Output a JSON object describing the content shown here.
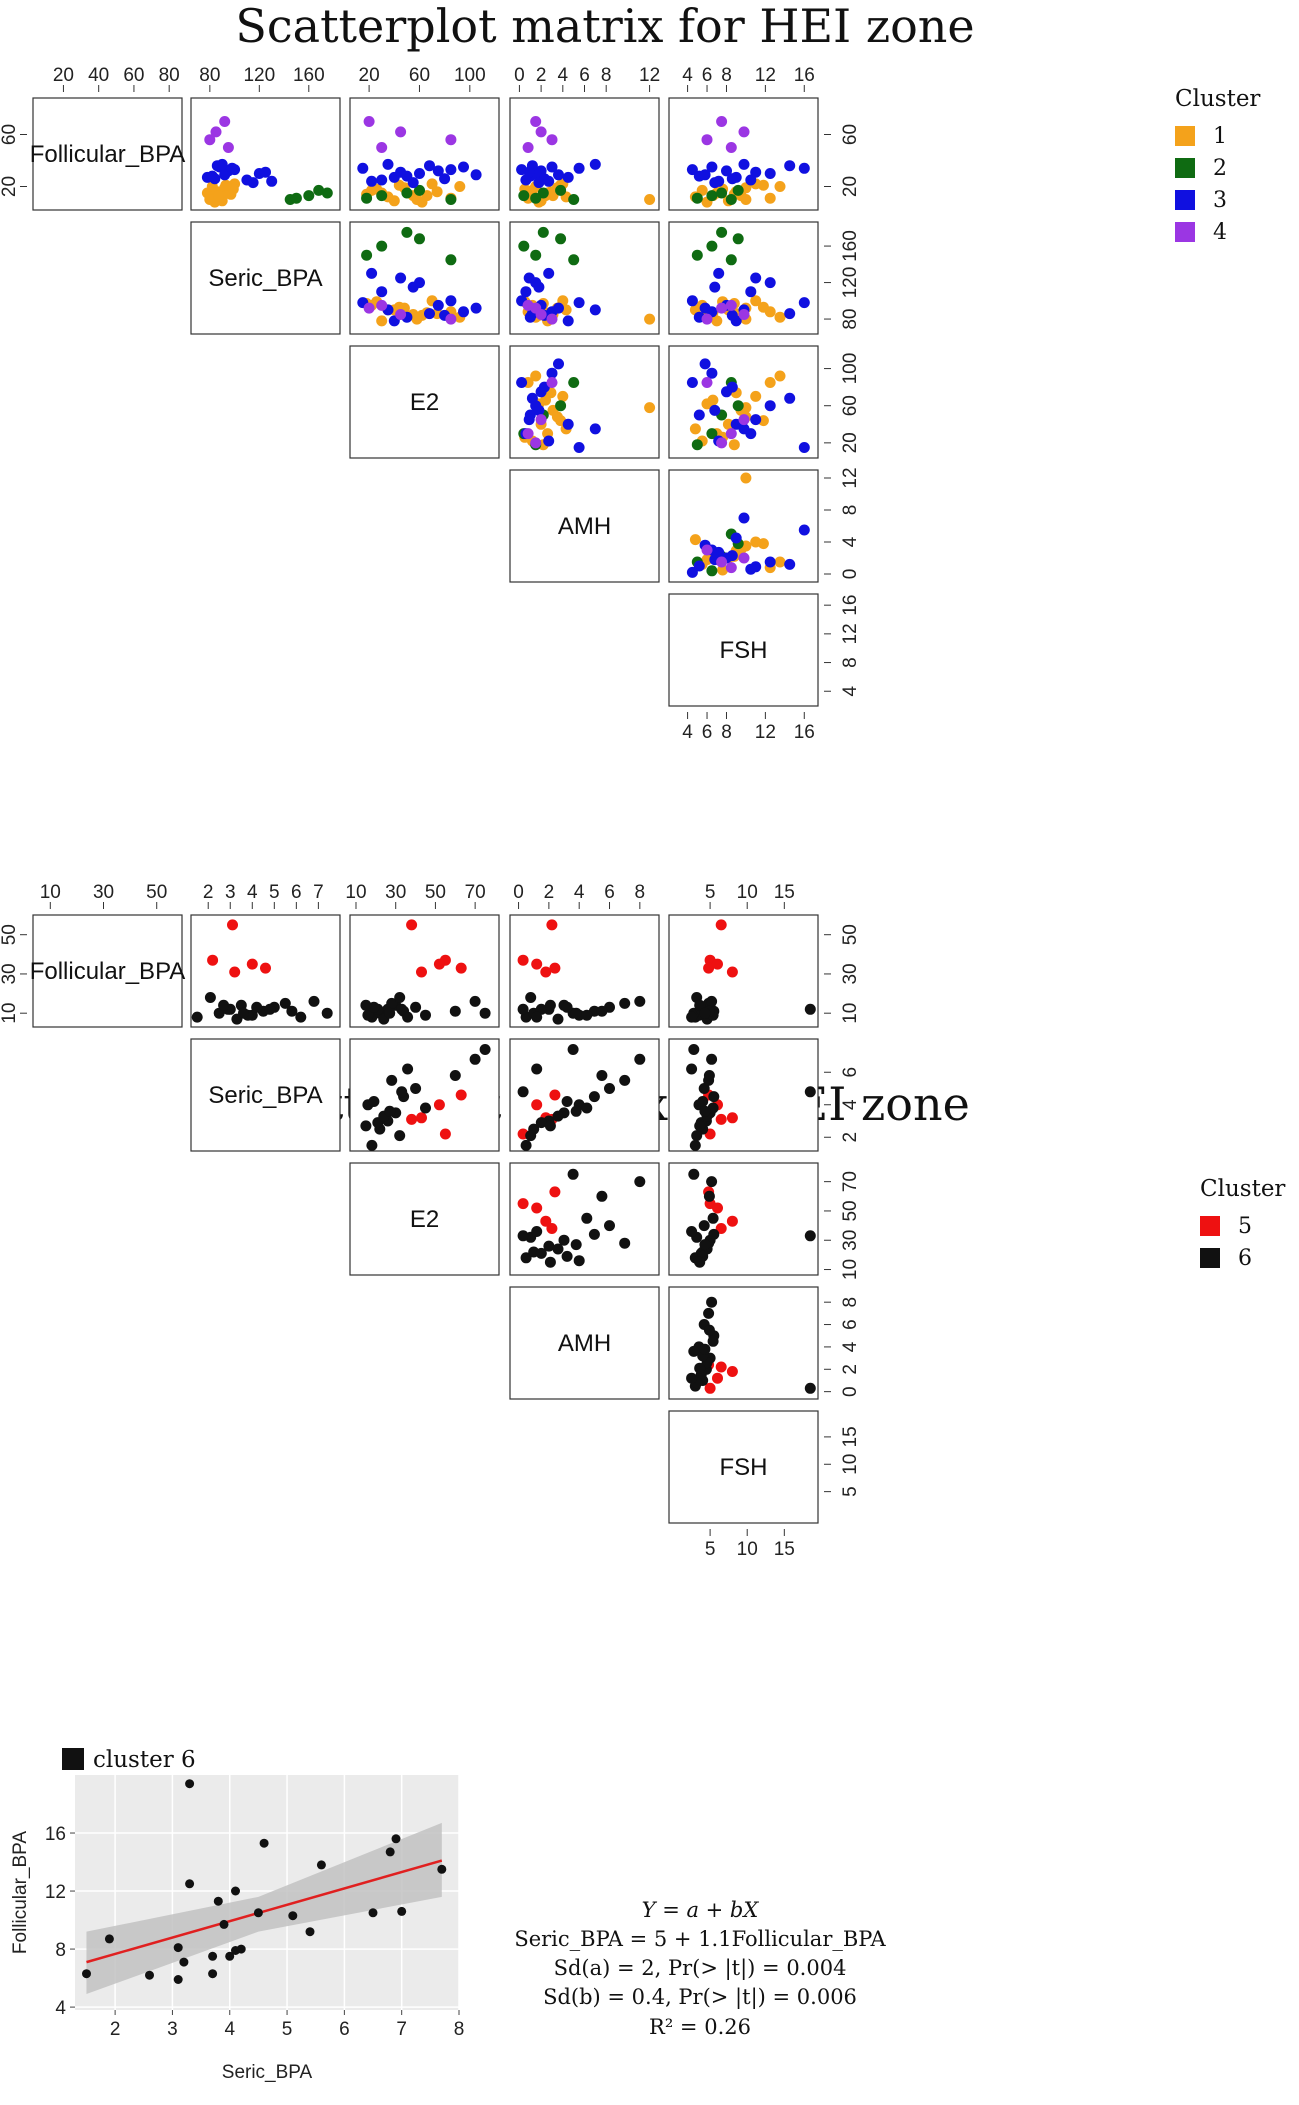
{
  "chart_data": [
    {
      "type": "scatter-matrix",
      "title": "Scatterplot matrix for HEI zone",
      "variables": [
        "Follicular_BPA",
        "Seric_BPA",
        "E2",
        "AMH",
        "FSH"
      ],
      "ranges": {
        "Follicular_BPA": [
          5,
          85
        ],
        "Seric_BPA": [
          68,
          182
        ],
        "E2": [
          8,
          120
        ],
        "AMH": [
          -0.5,
          12.5
        ],
        "FSH": [
          2.5,
          17
        ]
      },
      "ticks": {
        "Follicular_BPA": [
          20,
          40,
          60,
          80
        ],
        "Seric_BPA": [
          80,
          120,
          160
        ],
        "E2": [
          20,
          60,
          100
        ],
        "AMH": [
          0,
          2,
          4,
          6,
          8,
          12
        ],
        "FSH": [
          4,
          6,
          8,
          12,
          16
        ]
      },
      "right_ticks": {
        "Follicular_BPA": [
          20,
          60
        ],
        "Seric_BPA": [
          80,
          120,
          160
        ],
        "E2": [
          20,
          60,
          100
        ],
        "AMH": [
          0,
          4,
          8,
          12
        ],
        "FSH": [
          4,
          8,
          12,
          16
        ]
      },
      "left_ticks": {
        "Follicular_BPA": [
          20,
          60
        ]
      },
      "bottom_ticks": {
        "FSH": [
          4,
          6,
          8,
          12,
          16
        ]
      },
      "legend": {
        "title": "Cluster",
        "entries": [
          {
            "label": "1",
            "color": "#f4a21b"
          },
          {
            "label": "2",
            "color": "#0f6b12"
          },
          {
            "label": "3",
            "color": "#1010e0"
          },
          {
            "label": "4",
            "color": "#9b36e3"
          }
        ]
      },
      "series": [
        {
          "cluster": "1",
          "color": "#f4a21b",
          "points": [
            {
              "Follicular_BPA": 9,
              "Seric_BPA": 90,
              "E2": 40,
              "AMH": 2.0,
              "FSH": 8.2
            },
            {
              "Follicular_BPA": 13,
              "Seric_BPA": 85,
              "E2": 55,
              "AMH": 3.1,
              "FSH": 9.5
            },
            {
              "Follicular_BPA": 17,
              "Seric_BPA": 95,
              "E2": 22,
              "AMH": 1.2,
              "FSH": 5.5
            },
            {
              "Follicular_BPA": 22,
              "Seric_BPA": 100,
              "E2": 70,
              "AMH": 4.0,
              "FSH": 11.0
            },
            {
              "Follicular_BPA": 15,
              "Seric_BPA": 78,
              "E2": 30,
              "AMH": 2.6,
              "FSH": 7.0
            },
            {
              "Follicular_BPA": 11,
              "Seric_BPA": 88,
              "E2": 85,
              "AMH": 0.8,
              "FSH": 12.5
            },
            {
              "Follicular_BPA": 19,
              "Seric_BPA": 92,
              "E2": 48,
              "AMH": 3.5,
              "FSH": 10.0
            },
            {
              "Follicular_BPA": 8,
              "Seric_BPA": 84,
              "E2": 62,
              "AMH": 1.8,
              "FSH": 6.0
            },
            {
              "Follicular_BPA": 14,
              "Seric_BPA": 97,
              "E2": 18,
              "AMH": 2.2,
              "FSH": 8.8
            },
            {
              "Follicular_BPA": 20,
              "Seric_BPA": 82,
              "E2": 92,
              "AMH": 1.5,
              "FSH": 13.5
            },
            {
              "Follicular_BPA": 12,
              "Seric_BPA": 90,
              "E2": 35,
              "AMH": 4.3,
              "FSH": 4.8
            },
            {
              "Follicular_BPA": 16,
              "Seric_BPA": 86,
              "E2": 74,
              "AMH": 2.9,
              "FSH": 9.0
            },
            {
              "Follicular_BPA": 18,
              "Seric_BPA": 99,
              "E2": 26,
              "AMH": 0.5,
              "FSH": 7.6
            },
            {
              "Follicular_BPA": 10,
              "Seric_BPA": 80,
              "E2": 58,
              "AMH": 12.0,
              "FSH": 10.0
            },
            {
              "Follicular_BPA": 21,
              "Seric_BPA": 93,
              "E2": 44,
              "AMH": 3.8,
              "FSH": 11.8
            },
            {
              "Follicular_BPA": 13,
              "Seric_BPA": 87,
              "E2": 66,
              "AMH": 2.4,
              "FSH": 6.6
            }
          ]
        },
        {
          "cluster": "2",
          "color": "#0f6b12",
          "points": [
            {
              "Follicular_BPA": 13,
              "Seric_BPA": 160,
              "E2": 30,
              "AMH": 0.4,
              "FSH": 6.5
            },
            {
              "Follicular_BPA": 15,
              "Seric_BPA": 175,
              "E2": 50,
              "AMH": 2.2,
              "FSH": 7.5
            },
            {
              "Follicular_BPA": 10,
              "Seric_BPA": 145,
              "E2": 85,
              "AMH": 5.0,
              "FSH": 8.5
            },
            {
              "Follicular_BPA": 17,
              "Seric_BPA": 168,
              "E2": 60,
              "AMH": 3.8,
              "FSH": 9.2
            },
            {
              "Follicular_BPA": 11,
              "Seric_BPA": 150,
              "E2": 18,
              "AMH": 1.5,
              "FSH": 5.0
            }
          ]
        },
        {
          "cluster": "3",
          "color": "#1010e0",
          "points": [
            {
              "Follicular_BPA": 28,
              "Seric_BPA": 82,
              "E2": 50,
              "AMH": 1.0,
              "FSH": 5.2
            },
            {
              "Follicular_BPA": 32,
              "Seric_BPA": 95,
              "E2": 75,
              "AMH": 2.0,
              "FSH": 8.0
            },
            {
              "Follicular_BPA": 25,
              "Seric_BPA": 110,
              "E2": 30,
              "AMH": 0.6,
              "FSH": 10.5
            },
            {
              "Follicular_BPA": 35,
              "Seric_BPA": 88,
              "E2": 95,
              "AMH": 3.0,
              "FSH": 6.5
            },
            {
              "Follicular_BPA": 30,
              "Seric_BPA": 120,
              "E2": 60,
              "AMH": 1.5,
              "FSH": 12.5
            },
            {
              "Follicular_BPA": 27,
              "Seric_BPA": 78,
              "E2": 40,
              "AMH": 4.5,
              "FSH": 9.0
            },
            {
              "Follicular_BPA": 33,
              "Seric_BPA": 100,
              "E2": 85,
              "AMH": 0.2,
              "FSH": 4.5
            },
            {
              "Follicular_BPA": 24,
              "Seric_BPA": 130,
              "E2": 22,
              "AMH": 2.7,
              "FSH": 7.2
            },
            {
              "Follicular_BPA": 36,
              "Seric_BPA": 86,
              "E2": 68,
              "AMH": 1.2,
              "FSH": 14.5
            },
            {
              "Follicular_BPA": 29,
              "Seric_BPA": 92,
              "E2": 105,
              "AMH": 3.6,
              "FSH": 5.8
            },
            {
              "Follicular_BPA": 31,
              "Seric_BPA": 125,
              "E2": 45,
              "AMH": 0.9,
              "FSH": 11.0
            },
            {
              "Follicular_BPA": 26,
              "Seric_BPA": 84,
              "E2": 80,
              "AMH": 2.3,
              "FSH": 8.6
            },
            {
              "Follicular_BPA": 34,
              "Seric_BPA": 98,
              "E2": 15,
              "AMH": 5.5,
              "FSH": 16.0
            },
            {
              "Follicular_BPA": 23,
              "Seric_BPA": 115,
              "E2": 55,
              "AMH": 1.8,
              "FSH": 6.8
            },
            {
              "Follicular_BPA": 37,
              "Seric_BPA": 90,
              "E2": 35,
              "AMH": 7.0,
              "FSH": 9.8
            }
          ]
        },
        {
          "cluster": "4",
          "color": "#9b36e3",
          "points": [
            {
              "Follicular_BPA": 70,
              "Seric_BPA": 92,
              "E2": 20,
              "AMH": 1.5,
              "FSH": 7.5
            },
            {
              "Follicular_BPA": 62,
              "Seric_BPA": 85,
              "E2": 45,
              "AMH": 2.0,
              "FSH": 9.8
            },
            {
              "Follicular_BPA": 56,
              "Seric_BPA": 80,
              "E2": 85,
              "AMH": 3.0,
              "FSH": 6.0
            },
            {
              "Follicular_BPA": 50,
              "Seric_BPA": 95,
              "E2": 30,
              "AMH": 0.8,
              "FSH": 8.5
            }
          ]
        }
      ]
    },
    {
      "type": "scatter-matrix",
      "title": "Scatterplot matrix for LEI zone",
      "variables": [
        "Follicular_BPA",
        "Seric_BPA",
        "E2",
        "AMH",
        "FSH"
      ],
      "ranges": {
        "Follicular_BPA": [
          5,
          58
        ],
        "Seric_BPA": [
          1.4,
          7.8
        ],
        "E2": [
          9,
          80
        ],
        "AMH": [
          -0.3,
          9
        ],
        "FSH": [
          0,
          19
        ]
      },
      "ticks": {
        "Follicular_BPA": [
          10,
          30,
          50
        ],
        "Seric_BPA": [
          2,
          3,
          4,
          5,
          6,
          7
        ],
        "E2": [
          10,
          30,
          50,
          70
        ],
        "AMH": [
          0,
          2,
          4,
          6,
          8
        ],
        "FSH": [
          5,
          10,
          15
        ]
      },
      "right_ticks": {
        "Follicular_BPA": [
          10,
          30,
          50
        ],
        "Seric_BPA": [
          2,
          4,
          6
        ],
        "E2": [
          10,
          30,
          50,
          70
        ],
        "AMH": [
          0,
          2,
          4,
          6,
          8
        ],
        "FSH": [
          5,
          10,
          15
        ]
      },
      "left_ticks": {
        "Follicular_BPA": [
          10,
          30,
          50
        ]
      },
      "bottom_ticks": {
        "FSH": [
          5,
          10,
          15
        ]
      },
      "legend": {
        "title": "Cluster",
        "entries": [
          {
            "label": "5",
            "color": "#ee1111"
          },
          {
            "label": "6",
            "color": "#111111"
          }
        ]
      },
      "series": [
        {
          "cluster": "5",
          "color": "#ee1111",
          "points": [
            {
              "Follicular_BPA": 55,
              "Seric_BPA": 3.1,
              "E2": 38,
              "AMH": 2.2,
              "FSH": 6.5
            },
            {
              "Follicular_BPA": 37,
              "Seric_BPA": 2.2,
              "E2": 55,
              "AMH": 0.3,
              "FSH": 5.0
            },
            {
              "Follicular_BPA": 31,
              "Seric_BPA": 3.2,
              "E2": 43,
              "AMH": 1.8,
              "FSH": 8.0
            },
            {
              "Follicular_BPA": 33,
              "Seric_BPA": 4.6,
              "E2": 63,
              "AMH": 2.4,
              "FSH": 4.8
            },
            {
              "Follicular_BPA": 35,
              "Seric_BPA": 4.0,
              "E2": 52,
              "AMH": 1.2,
              "FSH": 6.0
            }
          ]
        },
        {
          "cluster": "6",
          "color": "#111111",
          "points": [
            {
              "Follicular_BPA": 8,
              "Seric_BPA": 1.5,
              "E2": 18,
              "AMH": 0.5,
              "FSH": 3.0
            },
            {
              "Follicular_BPA": 10,
              "Seric_BPA": 2.5,
              "E2": 22,
              "AMH": 1.0,
              "FSH": 4.0
            },
            {
              "Follicular_BPA": 12,
              "Seric_BPA": 3.0,
              "E2": 26,
              "AMH": 2.0,
              "FSH": 4.5
            },
            {
              "Follicular_BPA": 14,
              "Seric_BPA": 3.5,
              "E2": 30,
              "AMH": 3.0,
              "FSH": 5.0
            },
            {
              "Follicular_BPA": 9,
              "Seric_BPA": 4.0,
              "E2": 16,
              "AMH": 4.0,
              "FSH": 3.5
            },
            {
              "Follicular_BPA": 11,
              "Seric_BPA": 4.5,
              "E2": 34,
              "AMH": 5.0,
              "FSH": 5.5
            },
            {
              "Follicular_BPA": 13,
              "Seric_BPA": 5.0,
              "E2": 40,
              "AMH": 6.0,
              "FSH": 4.2
            },
            {
              "Follicular_BPA": 15,
              "Seric_BPA": 5.5,
              "E2": 28,
              "AMH": 7.0,
              "FSH": 4.8
            },
            {
              "Follicular_BPA": 16,
              "Seric_BPA": 6.8,
              "E2": 70,
              "AMH": 8.0,
              "FSH": 5.2
            },
            {
              "Follicular_BPA": 10,
              "Seric_BPA": 7.4,
              "E2": 75,
              "AMH": 3.6,
              "FSH": 2.8
            },
            {
              "Follicular_BPA": 12,
              "Seric_BPA": 2.9,
              "E2": 21,
              "AMH": 1.5,
              "FSH": 3.8
            },
            {
              "Follicular_BPA": 7,
              "Seric_BPA": 3.3,
              "E2": 24,
              "AMH": 2.6,
              "FSH": 4.6
            },
            {
              "Follicular_BPA": 18,
              "Seric_BPA": 2.1,
              "E2": 32,
              "AMH": 0.8,
              "FSH": 3.2
            },
            {
              "Follicular_BPA": 9,
              "Seric_BPA": 3.8,
              "E2": 45,
              "AMH": 4.5,
              "FSH": 5.4
            },
            {
              "Follicular_BPA": 13,
              "Seric_BPA": 4.2,
              "E2": 19,
              "AMH": 3.2,
              "FSH": 4.0
            },
            {
              "Follicular_BPA": 8,
              "Seric_BPA": 6.2,
              "E2": 36,
              "AMH": 1.2,
              "FSH": 2.5
            },
            {
              "Follicular_BPA": 11,
              "Seric_BPA": 5.8,
              "E2": 60,
              "AMH": 5.5,
              "FSH": 4.9
            },
            {
              "Follicular_BPA": 14,
              "Seric_BPA": 2.7,
              "E2": 15,
              "AMH": 2.1,
              "FSH": 3.6
            },
            {
              "Follicular_BPA": 10,
              "Seric_BPA": 3.6,
              "E2": 27,
              "AMH": 3.8,
              "FSH": 4.3
            },
            {
              "Follicular_BPA": 12,
              "Seric_BPA": 4.8,
              "E2": 33,
              "AMH": 0.3,
              "FSH": 18.5
            }
          ]
        }
      ]
    },
    {
      "type": "scatter",
      "title": "cluster 6",
      "xlabel": "Seric_BPA",
      "ylabel": "Follicular_BPA",
      "xlim": [
        1.3,
        8.0
      ],
      "ylim": [
        3.8,
        20.0
      ],
      "xticks": [
        2,
        3,
        4,
        5,
        6,
        7,
        8
      ],
      "yticks": [
        4,
        8,
        12,
        16
      ],
      "points": [
        {
          "x": 1.5,
          "y": 6.3
        },
        {
          "x": 1.9,
          "y": 8.7
        },
        {
          "x": 2.6,
          "y": 6.2
        },
        {
          "x": 3.1,
          "y": 5.9
        },
        {
          "x": 3.1,
          "y": 8.1
        },
        {
          "x": 3.2,
          "y": 7.1
        },
        {
          "x": 3.3,
          "y": 19.4
        },
        {
          "x": 3.3,
          "y": 12.5
        },
        {
          "x": 3.7,
          "y": 6.3
        },
        {
          "x": 3.7,
          "y": 7.5
        },
        {
          "x": 3.8,
          "y": 11.3
        },
        {
          "x": 3.9,
          "y": 9.7
        },
        {
          "x": 4.0,
          "y": 7.5
        },
        {
          "x": 4.1,
          "y": 12.0
        },
        {
          "x": 4.1,
          "y": 7.9
        },
        {
          "x": 4.2,
          "y": 8.0
        },
        {
          "x": 4.5,
          "y": 10.5
        },
        {
          "x": 4.6,
          "y": 15.3
        },
        {
          "x": 5.1,
          "y": 10.3
        },
        {
          "x": 5.4,
          "y": 9.2
        },
        {
          "x": 5.6,
          "y": 13.8
        },
        {
          "x": 6.5,
          "y": 10.5
        },
        {
          "x": 6.8,
          "y": 14.7
        },
        {
          "x": 6.9,
          "y": 15.6
        },
        {
          "x": 7.0,
          "y": 10.6
        },
        {
          "x": 7.7,
          "y": 13.5
        }
      ],
      "fit_line": {
        "x": [
          1.5,
          7.7
        ],
        "y": [
          7.1,
          14.1
        ],
        "color": "#e02020"
      },
      "confidence_band": {
        "x": [
          1.5,
          4.5,
          7.7
        ],
        "lower": [
          4.9,
          9.2,
          11.6
        ],
        "upper": [
          9.2,
          11.6,
          16.7
        ]
      }
    }
  ],
  "equation": {
    "line1": "Y = a + bX",
    "line2": "Seric_BPA = 5 + 1.1Follicular_BPA",
    "line3": "Sd(a) = 2, Pr(> |t|) = 0.004",
    "line4": "Sd(b) = 0.4, Pr(> |t|) = 0.006",
    "line5": "R² = 0.26"
  }
}
